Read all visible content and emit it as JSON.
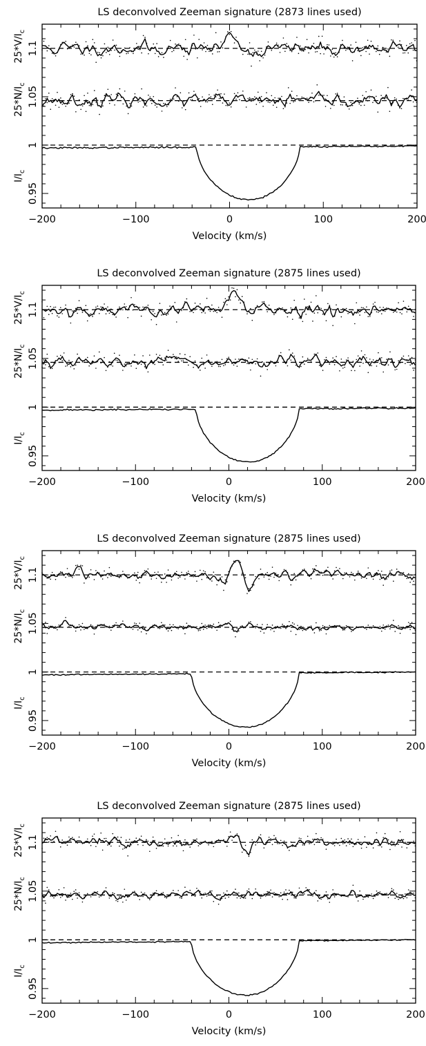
{
  "chart_data": [
    {
      "type": "line",
      "title": "LS deconvolved Zeeman signature (2873 lines used)",
      "xlabel": "Velocity (km/s)",
      "xlim": [
        -200,
        200
      ],
      "xticks": [
        -200,
        -100,
        0,
        100,
        200
      ],
      "xtick_labels": [
        "−200",
        "−100",
        "0",
        "100",
        "200"
      ],
      "ylim": [
        0.935,
        1.125
      ],
      "ytick_labels": [
        {
          "value": 1.1,
          "text": "1.1"
        },
        {
          "value": 1.05,
          "text": "1.05"
        },
        {
          "value": 1.0,
          "text": "1"
        },
        {
          "value": 0.95,
          "text": "0.95"
        }
      ],
      "ylabels": [
        {
          "main": "25*V/I",
          "sub": "c",
          "y": 1.102
        },
        {
          "main": "25*N/I",
          "sub": "c",
          "y": 1.047
        },
        {
          "main": "I/I",
          "sub": "c",
          "y": 0.968
        }
      ],
      "grid": false,
      "dashed_reference_levels": [
        1.1,
        1.046,
        1.0
      ],
      "series": [
        {
          "key": "V",
          "baseline": 1.1,
          "noise": 0.0026,
          "seed": 11,
          "features": [
            {
              "v": 3,
              "amp": 0.014,
              "w": 7
            },
            {
              "v": 15,
              "amp": -0.002,
              "w": 6
            },
            {
              "v": 28,
              "amp": -0.005,
              "w": 6
            }
          ]
        },
        {
          "key": "N",
          "baseline": 1.046,
          "noise": 0.0024,
          "seed": 23,
          "features": []
        },
        {
          "key": "I",
          "depth": 0.055,
          "v_start": -35,
          "v_end": 75,
          "continuum_left": 0.997,
          "continuum_right": 0.999,
          "noise": 0.0004,
          "seed": 37
        }
      ]
    },
    {
      "type": "line",
      "title": "LS deconvolved Zeeman signature (2875 lines used)",
      "xlabel": "Velocity (km/s)",
      "xlim": [
        -200,
        200
      ],
      "xticks": [
        -200,
        -100,
        0,
        100,
        200
      ],
      "xtick_labels": [
        "−200",
        "−100",
        "0",
        "100",
        "200"
      ],
      "ylim": [
        0.935,
        1.125
      ],
      "ytick_labels": [
        {
          "value": 1.1,
          "text": "1.1"
        },
        {
          "value": 1.05,
          "text": "1.05"
        },
        {
          "value": 1.0,
          "text": "1"
        },
        {
          "value": 0.95,
          "text": "0.95"
        }
      ],
      "ylabels": [
        {
          "main": "25*V/I",
          "sub": "c",
          "y": 1.102
        },
        {
          "main": "25*N/I",
          "sub": "c",
          "y": 1.047
        },
        {
          "main": "I/I",
          "sub": "c",
          "y": 0.968
        }
      ],
      "grid": false,
      "dashed_reference_levels": [
        1.1,
        1.046,
        1.0
      ],
      "series": [
        {
          "key": "V",
          "baseline": 1.1,
          "noise": 0.0026,
          "seed": 53,
          "features": [
            {
              "v": 5,
              "amp": 0.018,
              "w": 8
            },
            {
              "v": 20,
              "amp": -0.006,
              "w": 5
            }
          ]
        },
        {
          "key": "N",
          "baseline": 1.046,
          "noise": 0.0022,
          "seed": 67,
          "features": []
        },
        {
          "key": "I",
          "depth": 0.055,
          "v_start": -35,
          "v_end": 75,
          "continuum_left": 0.997,
          "continuum_right": 0.999,
          "noise": 0.0004,
          "seed": 71
        }
      ]
    },
    {
      "type": "line",
      "title": "LS deconvolved Zeeman signature (2875 lines used)",
      "xlabel": "Velocity (km/s)",
      "xlim": [
        -200,
        200
      ],
      "xticks": [
        -200,
        -100,
        0,
        100,
        200
      ],
      "xtick_labels": [
        "−200",
        "−100",
        "0",
        "100",
        "200"
      ],
      "ylim": [
        0.935,
        1.125
      ],
      "ytick_labels": [
        {
          "value": 1.1,
          "text": "1.1"
        },
        {
          "value": 1.05,
          "text": "1.05"
        },
        {
          "value": 1.0,
          "text": "1"
        },
        {
          "value": 0.95,
          "text": "0.95"
        }
      ],
      "ylabels": [
        {
          "main": "25*V/I",
          "sub": "c",
          "y": 1.102
        },
        {
          "main": "25*N/I",
          "sub": "c",
          "y": 1.047
        },
        {
          "main": "I/I",
          "sub": "c",
          "y": 0.968
        }
      ],
      "grid": false,
      "dashed_reference_levels": [
        1.1,
        1.046,
        1.0
      ],
      "series": [
        {
          "key": "V",
          "baseline": 1.1,
          "noise": 0.0018,
          "seed": 83,
          "features": [
            {
              "v": -8,
              "amp": -0.006,
              "w": 4
            },
            {
              "v": 10,
              "amp": 0.016,
              "w": 5
            },
            {
              "v": 20,
              "amp": -0.016,
              "w": 5
            }
          ]
        },
        {
          "key": "N",
          "baseline": 1.046,
          "noise": 0.0015,
          "seed": 97,
          "features": []
        },
        {
          "key": "I",
          "depth": 0.056,
          "v_start": -40,
          "v_end": 75,
          "continuum_left": 0.997,
          "continuum_right": 1.0,
          "noise": 0.0003,
          "seed": 101
        }
      ]
    },
    {
      "type": "line",
      "title": "LS deconvolved Zeeman signature (2875 lines used)",
      "xlabel": "Velocity (km/s)",
      "xlim": [
        -200,
        200
      ],
      "xticks": [
        -200,
        -100,
        0,
        100,
        200
      ],
      "xtick_labels": [
        "−200",
        "−100",
        "0",
        "100",
        "200"
      ],
      "ylim": [
        0.935,
        1.125
      ],
      "ytick_labels": [
        {
          "value": 1.1,
          "text": "1.1"
        },
        {
          "value": 1.05,
          "text": "1.05"
        },
        {
          "value": 1.0,
          "text": "1"
        },
        {
          "value": 0.95,
          "text": "0.95"
        }
      ],
      "ylabels": [
        {
          "main": "25*V/I",
          "sub": "c",
          "y": 1.102
        },
        {
          "main": "25*N/I",
          "sub": "c",
          "y": 1.047
        },
        {
          "main": "I/I",
          "sub": "c",
          "y": 0.968
        }
      ],
      "grid": false,
      "dashed_reference_levels": [
        1.1,
        1.046,
        1.0
      ],
      "series": [
        {
          "key": "V",
          "baseline": 1.1,
          "noise": 0.0018,
          "seed": 113,
          "features": [
            {
              "v": 5,
              "amp": 0.006,
              "w": 6
            },
            {
              "v": 20,
              "amp": -0.014,
              "w": 4
            },
            {
              "v": 30,
              "amp": 0.006,
              "w": 4
            }
          ]
        },
        {
          "key": "N",
          "baseline": 1.046,
          "noise": 0.0016,
          "seed": 127,
          "features": []
        },
        {
          "key": "I",
          "depth": 0.056,
          "v_start": -40,
          "v_end": 75,
          "continuum_left": 0.997,
          "continuum_right": 1.0,
          "noise": 0.0003,
          "seed": 131
        }
      ]
    }
  ]
}
